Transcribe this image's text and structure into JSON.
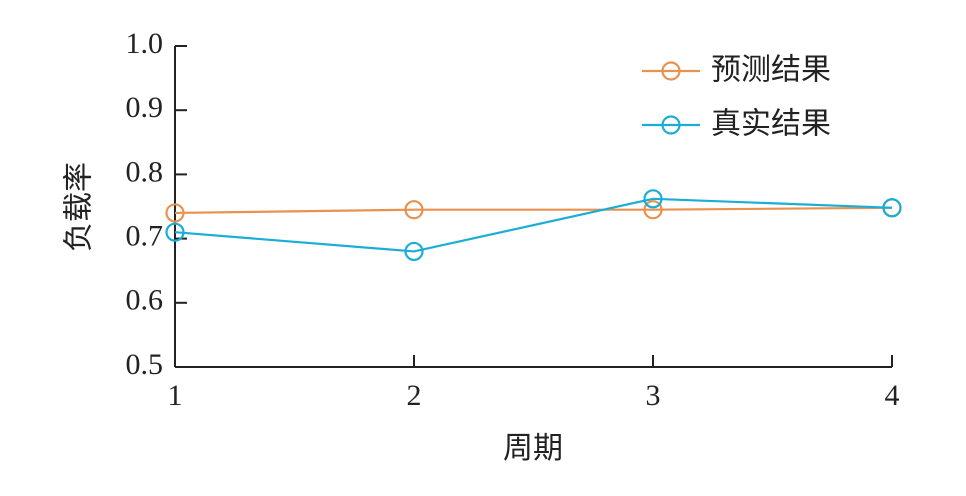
{
  "chart_data": {
    "type": "line",
    "x": [
      1,
      2,
      3,
      4
    ],
    "xticks": [
      "1",
      "2",
      "3",
      "4"
    ],
    "yticks": [
      "0.5",
      "0.6",
      "0.7",
      "0.8",
      "0.9",
      "1.0"
    ],
    "xlim": [
      1,
      4
    ],
    "ylim": [
      0.5,
      1.0
    ],
    "xlabel": "周期",
    "ylabel": "负载率",
    "grid": false,
    "legend_position": "top-right",
    "series": [
      {
        "name": "预测结果",
        "color": "#E8924E",
        "marker": "circle",
        "values": [
          0.74,
          0.745,
          0.745,
          0.748
        ]
      },
      {
        "name": "真实结果",
        "color": "#1AAED6",
        "marker": "circle",
        "values": [
          0.71,
          0.68,
          0.762,
          0.748
        ]
      }
    ]
  }
}
